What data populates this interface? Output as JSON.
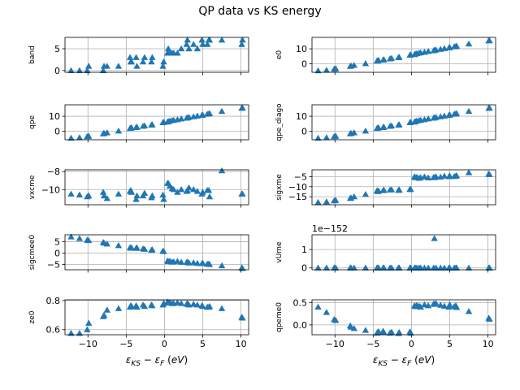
{
  "figure": {
    "title": "QP data vs KS energy"
  },
  "colors": {
    "marker": "#1f77b4",
    "grid": "#b0b0b0",
    "axis": "#000000"
  },
  "chart_data": [
    {
      "type": "scatter",
      "name": "band",
      "ylabel": "band",
      "xlabel": "",
      "xlim": [
        -13,
        11
      ],
      "ylim": [
        -0.4,
        7.6
      ],
      "xticks": [
        -10,
        -5,
        0,
        5,
        10
      ],
      "yticks": [
        0,
        5
      ],
      "ytick_labels": [
        "0",
        "5"
      ],
      "grid": true,
      "marker": "triangle",
      "x": [
        -12.2,
        -11.1,
        -10.1,
        -9.9,
        -8.0,
        -7.9,
        -7.5,
        -6.0,
        -4.5,
        -4.4,
        -4.3,
        -3.7,
        -3.6,
        -2.8,
        -2.6,
        -1.7,
        -1.6,
        -0.2,
        -0.1,
        0.4,
        0.5,
        0.7,
        1.0,
        1.2,
        1.7,
        2.2,
        2.9,
        3.0,
        3.2,
        3.8,
        4.3,
        4.9,
        5.0,
        5.6,
        5.8,
        5.9,
        7.5,
        10.1,
        10.2
      ],
      "y": [
        0,
        0,
        0,
        1,
        0,
        1,
        1,
        1,
        3,
        2,
        2,
        3,
        1,
        2,
        3,
        2,
        3,
        1,
        2,
        4,
        5,
        4,
        4,
        4,
        4,
        5,
        6,
        7,
        5,
        6,
        5,
        7,
        6,
        6,
        7,
        7,
        7,
        6,
        7
      ]
    },
    {
      "type": "scatter",
      "name": "e0",
      "ylabel": "e0",
      "xlabel": "",
      "xlim": [
        -13,
        11
      ],
      "ylim": [
        -5.6,
        17.6
      ],
      "xticks": [
        -10,
        -5,
        0,
        5,
        10
      ],
      "yticks": [
        0,
        10
      ],
      "ytick_labels": [
        "0",
        "10"
      ],
      "grid": true,
      "marker": "triangle",
      "x": [
        -12.2,
        -11.1,
        -10.1,
        -9.9,
        -8.0,
        -7.9,
        -7.5,
        -6.0,
        -4.5,
        -4.4,
        -4.3,
        -3.7,
        -3.6,
        -2.8,
        -2.6,
        -1.7,
        -1.6,
        -0.2,
        -0.1,
        0.4,
        0.5,
        0.7,
        1.0,
        1.2,
        1.7,
        2.2,
        2.9,
        3.0,
        3.2,
        3.8,
        4.3,
        4.9,
        5.0,
        5.6,
        5.8,
        5.9,
        7.5,
        10.1,
        10.2
      ],
      "y": [
        -4.5,
        -4.2,
        -3.5,
        -3.2,
        -1.6,
        -1.3,
        -0.9,
        0.2,
        2.0,
        2.2,
        2.4,
        2.6,
        2.8,
        3.4,
        3.7,
        4.2,
        4.4,
        5.8,
        6.0,
        6.2,
        6.6,
        6.9,
        7.2,
        7.4,
        7.8,
        8.3,
        8.8,
        9.0,
        9.3,
        9.7,
        10.2,
        10.7,
        10.9,
        11.4,
        11.6,
        11.8,
        13.3,
        15.3,
        15.5
      ]
    },
    {
      "type": "scatter",
      "name": "qpe",
      "ylabel": "qpe",
      "xlabel": "",
      "xlim": [
        -13,
        11
      ],
      "ylim": [
        -5.6,
        17.6
      ],
      "xticks": [
        -10,
        -5,
        0,
        5,
        10
      ],
      "yticks": [
        0,
        10
      ],
      "ytick_labels": [
        "0",
        "10"
      ],
      "grid": true,
      "marker": "triangle",
      "x": [
        -12.2,
        -11.1,
        -10.1,
        -9.9,
        -8.0,
        -7.9,
        -7.5,
        -6.0,
        -4.5,
        -4.4,
        -4.3,
        -3.7,
        -3.6,
        -2.8,
        -2.6,
        -1.7,
        -1.6,
        -0.2,
        -0.1,
        0.4,
        0.5,
        0.7,
        1.0,
        1.2,
        1.7,
        2.2,
        2.9,
        3.0,
        3.2,
        3.8,
        4.3,
        4.9,
        5.0,
        5.6,
        5.8,
        5.9,
        7.5,
        10.1,
        10.2
      ],
      "y": [
        -4.5,
        -4.2,
        -3.5,
        -3.2,
        -1.6,
        -1.3,
        -0.9,
        0.2,
        2.0,
        2.2,
        2.4,
        2.6,
        2.8,
        3.4,
        3.7,
        4.2,
        4.4,
        5.8,
        6.0,
        6.2,
        6.6,
        6.9,
        7.2,
        7.4,
        7.8,
        8.3,
        8.8,
        9.0,
        9.3,
        9.7,
        10.2,
        10.7,
        10.9,
        11.4,
        11.6,
        11.8,
        13.3,
        15.3,
        15.5
      ]
    },
    {
      "type": "scatter",
      "name": "qpe_diago",
      "ylabel": "qpe_diago",
      "xlabel": "",
      "xlim": [
        -13,
        11
      ],
      "ylim": [
        -5.6,
        17.6
      ],
      "xticks": [
        -10,
        -5,
        0,
        5,
        10
      ],
      "yticks": [
        0,
        10
      ],
      "ytick_labels": [
        "0",
        "10"
      ],
      "grid": true,
      "marker": "triangle",
      "x": [
        -12.2,
        -11.1,
        -10.1,
        -9.9,
        -8.0,
        -7.9,
        -7.5,
        -6.0,
        -4.5,
        -4.4,
        -4.3,
        -3.7,
        -3.6,
        -2.8,
        -2.6,
        -1.7,
        -1.6,
        -0.2,
        -0.1,
        0.4,
        0.5,
        0.7,
        1.0,
        1.2,
        1.7,
        2.2,
        2.9,
        3.0,
        3.2,
        3.8,
        4.3,
        4.9,
        5.0,
        5.6,
        5.8,
        5.9,
        7.5,
        10.1,
        10.2
      ],
      "y": [
        -4.5,
        -4.2,
        -3.5,
        -3.2,
        -1.6,
        -1.3,
        -0.9,
        0.2,
        2.0,
        2.2,
        2.4,
        2.6,
        2.8,
        3.4,
        3.7,
        4.2,
        4.4,
        5.8,
        6.0,
        6.2,
        6.6,
        6.9,
        7.2,
        7.4,
        7.8,
        8.3,
        8.8,
        9.0,
        9.3,
        9.7,
        10.2,
        10.7,
        10.9,
        11.4,
        11.6,
        11.8,
        13.3,
        15.3,
        15.5
      ]
    },
    {
      "type": "scatter",
      "name": "vxcme",
      "ylabel": "vxcme",
      "xlabel": "",
      "xlim": [
        -13,
        11
      ],
      "ylim": [
        -11.7,
        -7.8
      ],
      "xticks": [
        -10,
        -5,
        0,
        5,
        10
      ],
      "yticks": [
        -10,
        -8
      ],
      "ytick_labels": [
        "−10",
        "−8"
      ],
      "grid": true,
      "marker": "triangle",
      "x": [
        -12.2,
        -11.1,
        -10.1,
        -9.9,
        -8.0,
        -7.9,
        -7.5,
        -6.0,
        -4.5,
        -4.4,
        -4.3,
        -3.7,
        -3.6,
        -2.8,
        -2.6,
        -1.7,
        -1.6,
        -0.2,
        -0.1,
        0.4,
        0.5,
        0.7,
        1.0,
        1.2,
        1.7,
        2.2,
        2.9,
        3.0,
        3.2,
        3.8,
        4.3,
        4.9,
        5.0,
        5.6,
        5.8,
        5.9,
        7.5,
        10.1,
        10.2
      ],
      "y": [
        -10.5,
        -10.6,
        -10.8,
        -10.7,
        -10.3,
        -10.7,
        -11.0,
        -10.5,
        -10.2,
        -10.1,
        -10.3,
        -11.1,
        -10.7,
        -10.7,
        -10.4,
        -10.9,
        -10.7,
        -10.6,
        -11.1,
        -9.3,
        -9.3,
        -9.6,
        -9.9,
        -10.0,
        -10.3,
        -10.0,
        -10.2,
        -10.1,
        -9.8,
        -10.0,
        -10.2,
        -10.5,
        -10.3,
        -10.1,
        -10.1,
        -10.8,
        -7.9,
        -10.5,
        -10.5
      ]
    },
    {
      "type": "scatter",
      "name": "sigxme",
      "ylabel": "sigxme",
      "xlabel": "",
      "xlim": [
        -13,
        11
      ],
      "ylim": [
        -19,
        -1.6
      ],
      "xticks": [
        -10,
        -5,
        0,
        5,
        10
      ],
      "yticks": [
        -15,
        -10,
        -5
      ],
      "ytick_labels": [
        "−15",
        "−10",
        "−5"
      ],
      "grid": true,
      "marker": "triangle",
      "x": [
        -12.2,
        -11.1,
        -10.1,
        -9.9,
        -8.0,
        -7.9,
        -7.5,
        -6.0,
        -4.5,
        -4.4,
        -4.3,
        -3.7,
        -3.6,
        -2.8,
        -2.6,
        -1.7,
        -1.6,
        -0.2,
        -0.1,
        0.4,
        0.5,
        0.7,
        1.0,
        1.2,
        1.7,
        2.2,
        2.9,
        3.0,
        3.2,
        3.8,
        4.3,
        4.9,
        5.0,
        5.6,
        5.8,
        5.9,
        7.5,
        10.1,
        10.2
      ],
      "y": [
        -17.8,
        -17.5,
        -17.0,
        -16.8,
        -15.8,
        -15.6,
        -15.0,
        -13.8,
        -12.0,
        -12.4,
        -12.1,
        -11.9,
        -11.7,
        -11.6,
        -11.5,
        -11.8,
        -11.6,
        -11.3,
        -11.4,
        -5.0,
        -5.5,
        -5.2,
        -5.8,
        -5.4,
        -5.1,
        -5.6,
        -5.3,
        -5.5,
        -5.0,
        -5.2,
        -4.7,
        -5.0,
        -4.6,
        -4.9,
        -4.7,
        -4.5,
        -3.0,
        -3.7,
        -3.9
      ]
    },
    {
      "type": "scatter",
      "name": "sigcmee0",
      "ylabel": "sigcmee0",
      "xlabel": "",
      "xlim": [
        -13,
        11
      ],
      "ylim": [
        -7.3,
        8.0
      ],
      "xticks": [
        -10,
        -5,
        0,
        5,
        10
      ],
      "yticks": [
        -5,
        0,
        5
      ],
      "ytick_labels": [
        "−5",
        "0",
        "5"
      ],
      "grid": true,
      "marker": "triangle",
      "x": [
        -12.2,
        -11.1,
        -10.1,
        -9.9,
        -8.0,
        -7.9,
        -7.5,
        -6.0,
        -4.5,
        -4.4,
        -4.3,
        -3.7,
        -3.6,
        -2.8,
        -2.6,
        -1.7,
        -1.6,
        -0.2,
        -0.1,
        0.4,
        0.5,
        0.7,
        1.0,
        1.2,
        1.7,
        2.2,
        2.9,
        3.0,
        3.2,
        3.8,
        4.3,
        4.9,
        5.0,
        5.6,
        5.8,
        5.9,
        7.5,
        10.1,
        10.2
      ],
      "y": [
        7.1,
        6.4,
        5.7,
        5.5,
        4.7,
        4.4,
        4.0,
        3.3,
        2.4,
        2.2,
        2.3,
        2.1,
        2.3,
        1.9,
        1.7,
        1.3,
        1.5,
        0.9,
        0.7,
        -3.4,
        -3.7,
        -3.5,
        -3.9,
        -3.8,
        -3.6,
        -4.0,
        -4.1,
        -3.9,
        -4.3,
        -4.2,
        -4.5,
        -4.6,
        -4.4,
        -4.8,
        -4.7,
        -5.0,
        -5.5,
        -6.5,
        -6.7
      ]
    },
    {
      "type": "scatter",
      "name": "vUme",
      "ylabel": "vUme",
      "xlabel": "",
      "xlim": [
        -13,
        11
      ],
      "ylim": [
        -0.1,
        1.8
      ],
      "xticks": [
        -10,
        -5,
        0,
        5,
        10
      ],
      "yticks": [
        0,
        1
      ],
      "ytick_labels": [
        "0",
        "1"
      ],
      "offset_text": "1e−152",
      "grid": true,
      "marker": "triangle",
      "x": [
        -12.2,
        -11.1,
        -10.1,
        -9.9,
        -8.0,
        -7.9,
        -7.5,
        -6.0,
        -4.5,
        -4.4,
        -4.3,
        -3.7,
        -3.6,
        -2.8,
        -2.6,
        -1.7,
        -1.6,
        -0.2,
        -0.1,
        0.4,
        0.5,
        0.7,
        1.0,
        1.2,
        1.7,
        2.2,
        2.9,
        3.0,
        3.2,
        3.8,
        4.3,
        4.9,
        5.0,
        5.6,
        5.8,
        5.9,
        7.5,
        10.1,
        10.2
      ],
      "y": [
        0,
        0,
        0,
        0,
        0,
        0,
        0,
        0,
        0,
        0,
        0,
        0,
        0,
        0,
        0,
        0,
        0,
        0,
        0,
        0,
        0,
        0,
        0,
        0,
        0,
        0,
        0,
        1.6,
        0,
        0,
        0,
        0,
        0,
        0,
        0,
        0,
        0,
        0,
        0
      ]
    },
    {
      "type": "scatter",
      "name": "ze0",
      "ylabel": "ze0",
      "xlabel": "ε_KS − ε_F (eV)",
      "xlim": [
        -13,
        11
      ],
      "ylim": [
        0.565,
        0.805
      ],
      "xticks": [
        -10,
        -5,
        0,
        5,
        10
      ],
      "yticks": [
        0.6,
        0.8
      ],
      "ytick_labels": [
        "0.6",
        "0.8"
      ],
      "grid": true,
      "marker": "triangle",
      "x": [
        -12.2,
        -11.1,
        -10.1,
        -9.9,
        -8.0,
        -7.9,
        -7.5,
        -6.0,
        -4.5,
        -4.4,
        -4.3,
        -3.7,
        -3.6,
        -2.8,
        -2.6,
        -1.7,
        -1.6,
        -0.2,
        -0.1,
        0.4,
        0.5,
        0.7,
        1.0,
        1.2,
        1.7,
        2.2,
        2.9,
        3.0,
        3.2,
        3.8,
        4.3,
        4.9,
        5.0,
        5.6,
        5.8,
        5.9,
        7.5,
        10.1,
        10.2
      ],
      "y": [
        0.575,
        0.575,
        0.6,
        0.645,
        0.69,
        0.7,
        0.735,
        0.745,
        0.755,
        0.765,
        0.76,
        0.765,
        0.755,
        0.77,
        0.76,
        0.77,
        0.765,
        0.77,
        0.78,
        0.79,
        0.785,
        0.785,
        0.78,
        0.78,
        0.785,
        0.78,
        0.775,
        0.78,
        0.77,
        0.775,
        0.77,
        0.765,
        0.76,
        0.755,
        0.755,
        0.76,
        0.745,
        0.685,
        0.68
      ]
    },
    {
      "type": "scatter",
      "name": "qpeme0",
      "ylabel": "qpeme0",
      "xlabel": "ε_KS − ε_F (eV)",
      "xlim": [
        -13,
        11
      ],
      "ylim": [
        -0.22,
        0.56
      ],
      "xticks": [
        -10,
        -5,
        0,
        5,
        10
      ],
      "yticks": [
        0.0,
        0.5
      ],
      "ytick_labels": [
        "0.0",
        "0.5"
      ],
      "grid": true,
      "marker": "triangle",
      "x": [
        -12.2,
        -11.1,
        -10.1,
        -9.9,
        -8.0,
        -7.9,
        -7.5,
        -6.0,
        -4.5,
        -4.4,
        -4.3,
        -3.7,
        -3.6,
        -2.8,
        -2.6,
        -1.7,
        -1.6,
        -0.2,
        -0.1,
        0.4,
        0.5,
        0.7,
        1.0,
        1.2,
        1.7,
        2.2,
        2.9,
        3.0,
        3.2,
        3.8,
        4.3,
        4.9,
        5.0,
        5.6,
        5.8,
        5.9,
        7.5,
        10.1,
        10.2
      ],
      "y": [
        0.4,
        0.28,
        0.12,
        0.1,
        -0.02,
        -0.05,
        -0.08,
        -0.12,
        -0.18,
        -0.16,
        -0.15,
        -0.14,
        -0.17,
        -0.18,
        -0.16,
        -0.19,
        -0.17,
        -0.15,
        -0.18,
        0.43,
        0.41,
        0.44,
        0.42,
        0.4,
        0.45,
        0.43,
        0.47,
        0.46,
        0.48,
        0.44,
        0.42,
        0.4,
        0.45,
        0.41,
        0.43,
        0.39,
        0.3,
        0.15,
        0.13
      ]
    }
  ]
}
